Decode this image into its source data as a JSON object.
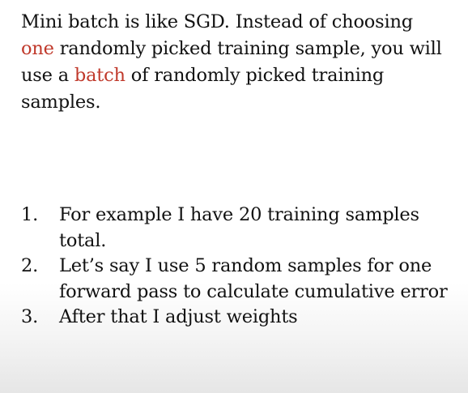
{
  "slide": {
    "intro": {
      "part1": "Mini batch is like SGD. Instead of choosing",
      "highlight1": "one",
      "part2": "randomly picked training sample, you will use a",
      "highlight2": "batch",
      "part3": "of randomly picked training samples."
    },
    "steps": [
      {
        "number": "1.",
        "text": "For example I have 20 training samples total."
      },
      {
        "number": "2.",
        "text": "Let’s say I use 5 random samples for one forward pass to calculate cumulative error"
      },
      {
        "number": "3.",
        "text": "After that I adjust weights"
      }
    ],
    "highlight_color": "#c0392b",
    "text_color": "#111111"
  }
}
